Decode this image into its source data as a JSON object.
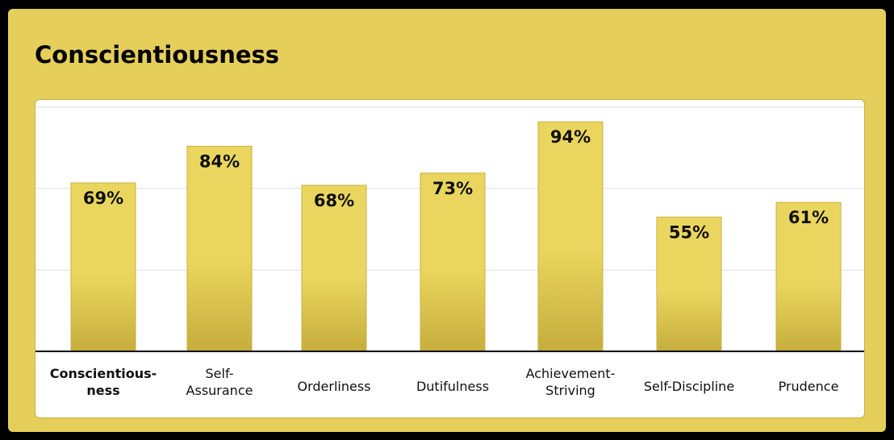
{
  "panel": {
    "title": "Conscientiousness"
  },
  "colors": {
    "panel": "#e5cf5a",
    "bar_top": "#ead65e",
    "bar_bottom": "#c6ad3c",
    "bar_border": "#c9b040"
  },
  "chart_data": {
    "type": "bar",
    "title": "Conscientiousness",
    "categories": [
      [
        "Conscientious-",
        "ness"
      ],
      [
        "Self-",
        "Assurance"
      ],
      [
        "Orderliness"
      ],
      [
        "Dutifulness"
      ],
      [
        "Achievement-",
        "Striving"
      ],
      [
        "Self-Discipline"
      ],
      [
        "Prudence"
      ]
    ],
    "highlighted_category": 0,
    "values": [
      69,
      84,
      68,
      73,
      94,
      55,
      61
    ],
    "value_labels": [
      "69%",
      "84%",
      "68%",
      "73%",
      "94%",
      "55%",
      "61%"
    ],
    "ylim": [
      0,
      100
    ],
    "gridlines": [
      33.3,
      66.7,
      100
    ],
    "grid": true,
    "legend": "none",
    "xlabel": "",
    "ylabel": ""
  }
}
